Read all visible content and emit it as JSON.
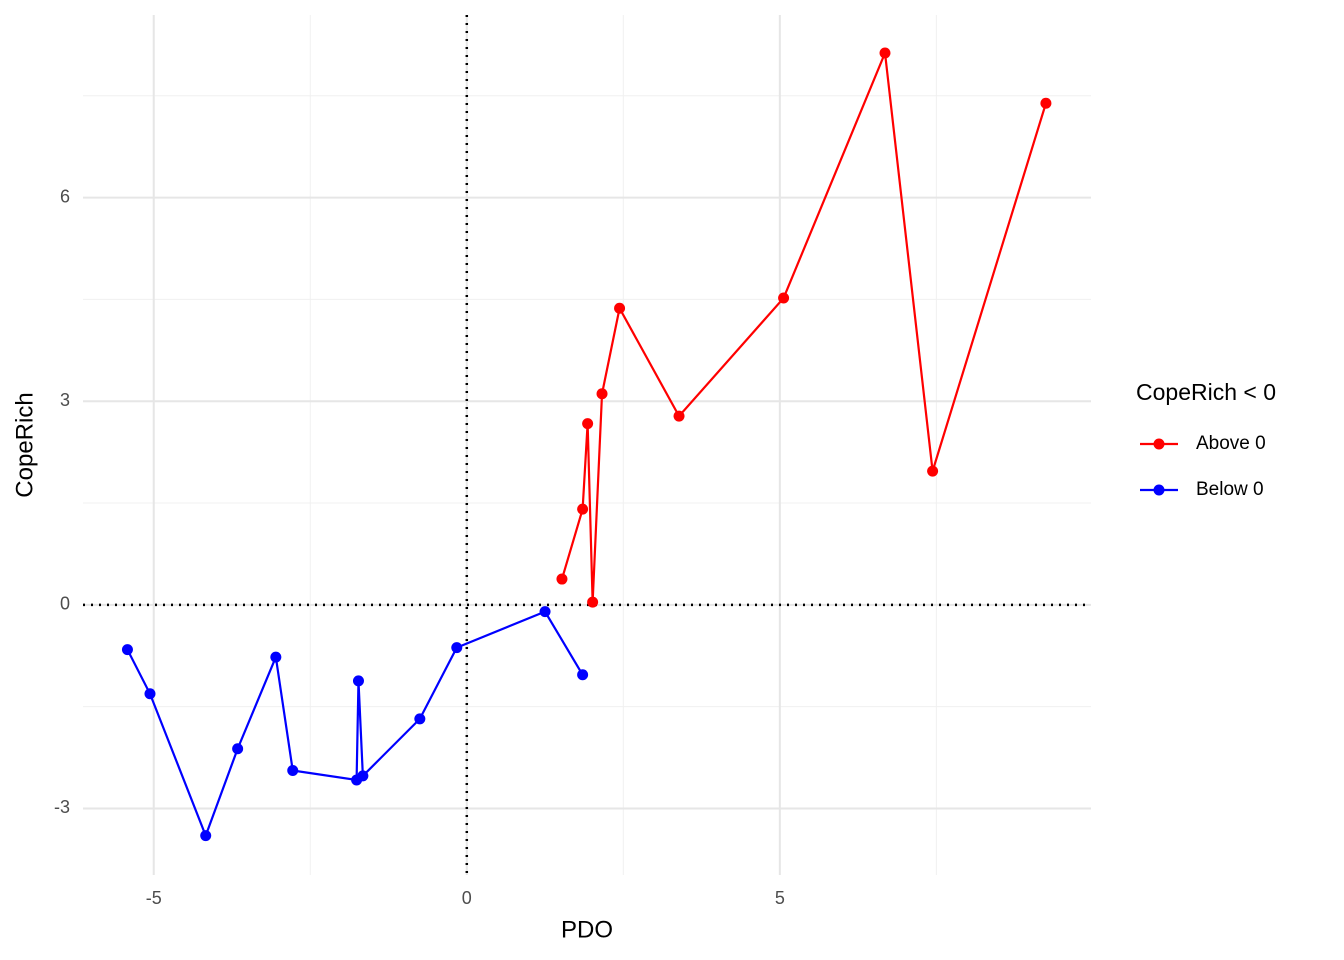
{
  "chart_data": {
    "type": "line",
    "x_label": "PDO",
    "y_label": "CopeRich",
    "legend_title": "CopeRich < 0",
    "legend_position": "right",
    "xlim": [
      -6.13,
      9.97
    ],
    "ylim": [
      -3.98,
      8.69
    ],
    "xticks": [
      -5,
      0,
      5
    ],
    "yticks": [
      -3,
      0,
      3,
      6
    ],
    "x_minor_grid": [
      -2.5,
      2.5,
      7.5
    ],
    "y_minor_grid": [
      -1.5,
      1.5,
      4.5,
      7.5
    ],
    "grid": true,
    "hline": 0,
    "vline": 0,
    "series": [
      {
        "name": "Above 0",
        "color": "#ff0000",
        "x": [
          1.52,
          1.85,
          1.93,
          2.01,
          2.16,
          2.44,
          3.39,
          5.06,
          6.68,
          7.44,
          9.25
        ],
        "values": [
          0.38,
          1.41,
          2.67,
          0.04,
          3.11,
          4.37,
          2.78,
          4.52,
          8.13,
          1.97,
          7.39
        ]
      },
      {
        "name": "Below 0",
        "color": "#0000ff",
        "x": [
          -5.42,
          -5.06,
          -4.17,
          -3.66,
          -3.05,
          -2.78,
          -1.76,
          -1.73,
          -1.66,
          -0.75,
          -0.16,
          1.25,
          1.85
        ],
        "values": [
          -0.66,
          -1.31,
          -3.4,
          -2.12,
          -0.77,
          -2.44,
          -2.58,
          -1.12,
          -2.52,
          -1.68,
          -0.63,
          -0.1,
          -1.03
        ]
      }
    ]
  }
}
